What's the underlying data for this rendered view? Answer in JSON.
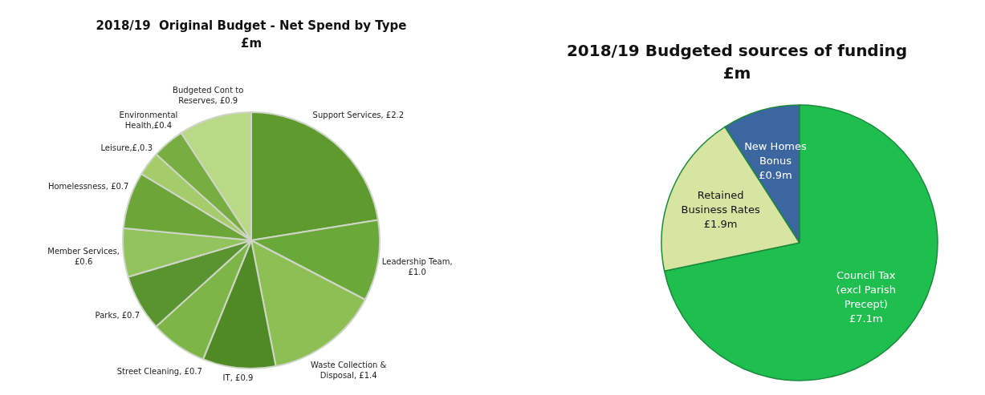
{
  "chart_data": [
    {
      "type": "pie",
      "title": "2018/19  Original Budget - Net Spend by Type\n£m",
      "categories": [
        "Support Services, £2.2",
        "Leadership Team,\n£1.0",
        "Waste Collection &\nDisposal, £1.4",
        "IT, £0.9",
        "Street Cleaning, £0.7",
        "Parks, £0.7",
        "Member Services,\n£0.6",
        "Homelessness, £0.7",
        "Leisure,£,0.3",
        "Environmental\nHealth,£0.4",
        "Budgeted Cont to\nReserves, £0.9"
      ],
      "values": [
        2.2,
        1.0,
        1.4,
        0.9,
        0.7,
        0.7,
        0.6,
        0.7,
        0.3,
        0.4,
        0.9
      ],
      "colors": [
        "#5e9a2e",
        "#6aa83a",
        "#8dbf55",
        "#4f8a24",
        "#7db546",
        "#5a9430",
        "#92c35c",
        "#6ca638",
        "#a4cc6b",
        "#78ad41",
        "#b8d985"
      ],
      "legend": false
    },
    {
      "type": "pie",
      "title": "2018/19 Budgeted sources of funding\n£m",
      "categories": [
        "Council Tax\n(excl Parish\nPrecept)\n£7.1m",
        "Retained\nBusiness Rates\n£1.9m",
        "New Homes\nBonus\n£0.9m"
      ],
      "values": [
        7.1,
        1.9,
        0.9
      ],
      "colors": [
        "#1fbf4f",
        "#d8e4a2",
        "#3c66a0"
      ],
      "legend": false
    }
  ]
}
